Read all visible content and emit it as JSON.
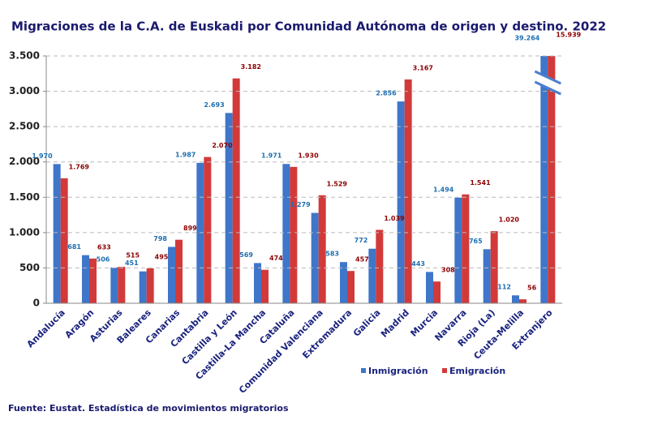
{
  "chart_data": {
    "type": "bar",
    "title": "Migraciones de la C.A. de Euskadi por Comunidad Autónoma de origen y destino. 2022",
    "source": "Fuente: Eustat. Estadística de movimientos migratorios",
    "categories": [
      "Andalucía",
      "Aragón",
      "Asturias",
      "Baleares",
      "Canarias",
      "Cantabria",
      "Castilla y León",
      "Castilla-La Mancha",
      "Cataluña",
      "Comunidad Valenciana",
      "Extremadura",
      "Galicia",
      "Madrid",
      "Murcia",
      "Navarra",
      "Rioja (La)",
      "Ceuta-Melilla",
      "Extranjero"
    ],
    "series": [
      {
        "name": "Inmigración",
        "color": "#3f76c9",
        "label_color": "#1f6fb0",
        "values": [
          1970,
          681,
          506,
          451,
          798,
          1987,
          2693,
          569,
          1971,
          1279,
          583,
          772,
          2856,
          443,
          1494,
          765,
          112,
          39264
        ],
        "value_labels": [
          "1.970",
          "681",
          "506",
          "451",
          "798",
          "1.987",
          "2.693",
          "569",
          "1.971",
          "1.279",
          "583",
          "772",
          "2.856",
          "443",
          "1.494",
          "765",
          "112",
          "39.264"
        ]
      },
      {
        "name": "Emigración",
        "color": "#d23a3a",
        "label_color": "#8b0000",
        "values": [
          1769,
          633,
          515,
          495,
          899,
          2070,
          3182,
          474,
          1930,
          1529,
          457,
          1039,
          3167,
          308,
          1541,
          1020,
          56,
          15939
        ],
        "value_labels": [
          "1.769",
          "633",
          "515",
          "495",
          "899",
          "2.070",
          "3.182",
          "474",
          "1.930",
          "1.529",
          "457",
          "1.039",
          "3.167",
          "308",
          "1.541",
          "1.020",
          "56",
          "15.939"
        ]
      }
    ],
    "ylim": [
      0,
      3500
    ],
    "yticks": [
      0,
      500,
      {
        "value": 1000,
        "label": "1.000"
      },
      {
        "value": 1500,
        "label": "1.500"
      },
      {
        "value": 2000,
        "label": "2.000"
      },
      {
        "value": 2500,
        "label": "2.500"
      },
      {
        "value": 3000,
        "label": "3.000"
      },
      {
        "value": 3500,
        "label": "3.500"
      }
    ],
    "grid": true
  }
}
